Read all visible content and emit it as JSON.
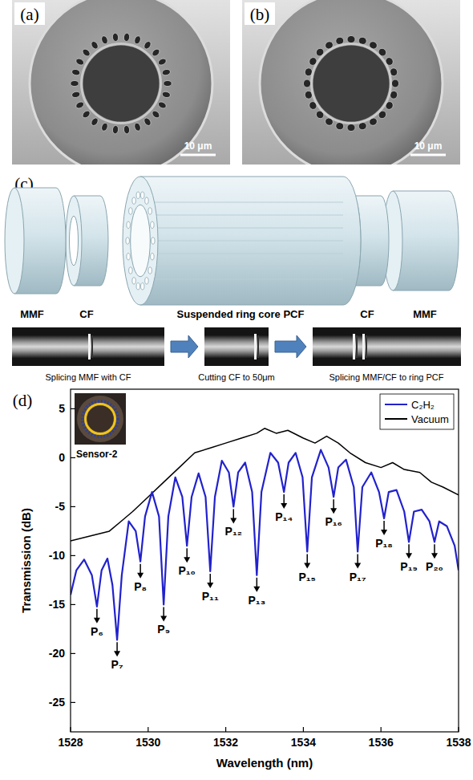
{
  "figure": {
    "panel_a": {
      "label": "(a)",
      "scale_bar": "10 μm"
    },
    "panel_b": {
      "label": "(b)",
      "scale_bar": "10 μm"
    },
    "schematic": {
      "label": "(c)",
      "parts": [
        "MMF",
        "CF",
        "Suspended ring core PCF",
        "CF",
        "MMF"
      ]
    },
    "process": {
      "steps": [
        "Splicing MMF with CF",
        "Cutting CF to 50μm",
        "Splicing MMF/CF to ring PCF"
      ]
    }
  },
  "chart_data": {
    "type": "line",
    "panel_label": "(d)",
    "x_label": "Wavelength (nm)",
    "y_label": "Transmission (dB)",
    "xlim": [
      1528,
      1538
    ],
    "xticks": [
      1528,
      1530,
      1532,
      1534,
      1536,
      1538
    ],
    "ylim": [
      -28,
      7
    ],
    "yticks": [
      5,
      0,
      -5,
      -10,
      -15,
      -20,
      -25
    ],
    "legend": "top-right",
    "inset_label": "Sensor-2",
    "series": [
      {
        "name": "C₂H₂",
        "color": "#2222cc",
        "x": [
          1528.0,
          1528.15,
          1528.35,
          1528.55,
          1528.68,
          1528.8,
          1528.95,
          1529.08,
          1529.2,
          1529.32,
          1529.5,
          1529.68,
          1529.8,
          1529.92,
          1530.1,
          1530.28,
          1530.4,
          1530.52,
          1530.7,
          1530.88,
          1531.0,
          1531.12,
          1531.3,
          1531.48,
          1531.6,
          1531.72,
          1531.9,
          1532.08,
          1532.2,
          1532.32,
          1532.5,
          1532.68,
          1532.8,
          1532.92,
          1533.15,
          1533.35,
          1533.5,
          1533.62,
          1533.8,
          1533.98,
          1534.1,
          1534.22,
          1534.45,
          1534.65,
          1534.78,
          1534.9,
          1535.1,
          1535.3,
          1535.4,
          1535.52,
          1535.75,
          1535.95,
          1536.08,
          1536.2,
          1536.4,
          1536.6,
          1536.72,
          1536.85,
          1537.05,
          1537.25,
          1537.38,
          1537.5,
          1537.7,
          1537.9,
          1538.0
        ],
        "values": [
          -14,
          -11.5,
          -10.4,
          -12,
          -15.2,
          -11.5,
          -10.3,
          -13,
          -18.6,
          -12,
          -6.5,
          -7.5,
          -10.6,
          -6,
          -3.5,
          -6,
          -15,
          -6,
          -2,
          -4,
          -9,
          -4,
          -1.6,
          -4,
          -11.6,
          -4,
          -0.3,
          -1.5,
          -5,
          -1.5,
          -0.5,
          -3.5,
          -12,
          -3.5,
          0.5,
          -0.5,
          -3.5,
          -0.5,
          0.5,
          -2,
          -9.6,
          -2,
          0.8,
          -1,
          -4,
          -1,
          -0.2,
          -3,
          -9.6,
          -3,
          -1.5,
          -3.5,
          -6.2,
          -3.5,
          -3.3,
          -5.5,
          -8.6,
          -5.5,
          -5.3,
          -6.5,
          -8.6,
          -6.5,
          -7,
          -9,
          -11.5
        ]
      },
      {
        "name": "Vacuum",
        "color": "#000000",
        "x": [
          1528,
          1528.5,
          1529,
          1529.3,
          1529.6,
          1530,
          1530.4,
          1530.8,
          1531.2,
          1531.6,
          1532,
          1532.4,
          1532.8,
          1533,
          1533.3,
          1533.6,
          1534,
          1534.3,
          1534.6,
          1534.9,
          1535.2,
          1535.6,
          1536,
          1536.3,
          1536.6,
          1537,
          1537.3,
          1537.6,
          1538
        ],
        "values": [
          -8.5,
          -8,
          -7.5,
          -6.5,
          -5.5,
          -4,
          -2.5,
          -1,
          0.5,
          1,
          1.5,
          2,
          2.5,
          3,
          2.5,
          2.8,
          2,
          1.5,
          2.2,
          1.5,
          0.5,
          -0.5,
          -1,
          -0.5,
          -1.2,
          -1.5,
          -2.5,
          -3,
          -3.8
        ]
      }
    ],
    "annotations": [
      {
        "text": "P₆",
        "x": 1528.68,
        "y": -15.2
      },
      {
        "text": "P₇",
        "x": 1529.2,
        "y": -18.6
      },
      {
        "text": "P₈",
        "x": 1529.8,
        "y": -10.6
      },
      {
        "text": "P₉",
        "x": 1530.4,
        "y": -15
      },
      {
        "text": "P₁₀",
        "x": 1531.0,
        "y": -9
      },
      {
        "text": "P₁₁",
        "x": 1531.6,
        "y": -11.6
      },
      {
        "text": "P₁₂",
        "x": 1532.2,
        "y": -5
      },
      {
        "text": "P₁₃",
        "x": 1532.8,
        "y": -12
      },
      {
        "text": "P₁₄",
        "x": 1533.5,
        "y": -3.5
      },
      {
        "text": "P₁₅",
        "x": 1534.1,
        "y": -9.6
      },
      {
        "text": "P₁₆",
        "x": 1534.78,
        "y": -4
      },
      {
        "text": "P₁₇",
        "x": 1535.4,
        "y": -9.6
      },
      {
        "text": "P₁₈",
        "x": 1536.08,
        "y": -6.2
      },
      {
        "text": "P₁₉",
        "x": 1536.72,
        "y": -8.6
      },
      {
        "text": "P₂₀",
        "x": 1537.38,
        "y": -8.6
      }
    ]
  }
}
